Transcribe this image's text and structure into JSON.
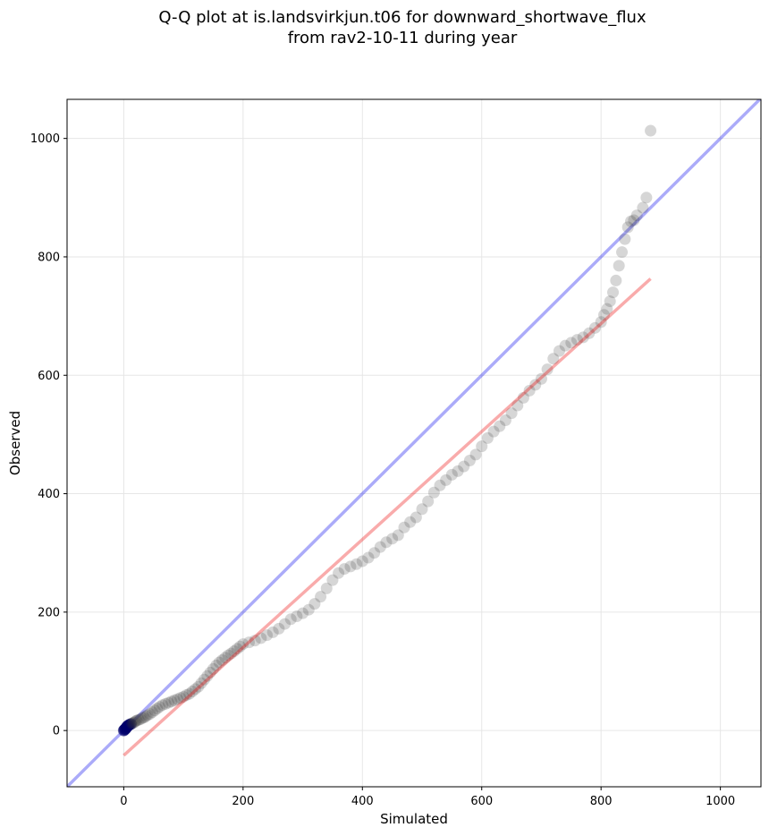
{
  "chart_data": {
    "type": "scatter",
    "title": "Q-Q plot at is.landsvirkjun.t06 for downward_shortwave_flux",
    "subtitle": "from rav2-10-11 during year",
    "xlabel": "Simulated",
    "ylabel": "Observed",
    "xlim": [
      -95,
      1068
    ],
    "ylim": [
      -95,
      1066
    ],
    "xticks": [
      0,
      200,
      400,
      600,
      800,
      1000
    ],
    "yticks": [
      0,
      200,
      400,
      600,
      800,
      1000
    ],
    "grid": true,
    "reference_line": {
      "name": "1:1 line",
      "color": "#0000ee",
      "from": [
        -95,
        -95
      ],
      "to": [
        1068,
        1068
      ]
    },
    "fit_line": {
      "name": "linear fit",
      "color": "#ee0000",
      "from": [
        0,
        -42
      ],
      "to": [
        883,
        763
      ]
    },
    "colors": {
      "points": "#333333",
      "low_points": "#00006a"
    },
    "points": {
      "x": [
        0,
        1,
        2,
        3,
        4,
        5,
        6,
        7,
        8,
        10,
        12,
        14,
        16,
        18,
        20,
        22,
        25,
        28,
        31,
        34,
        37,
        40,
        44,
        48,
        52,
        56,
        60,
        65,
        70,
        75,
        80,
        85,
        90,
        95,
        100,
        105,
        110,
        115,
        120,
        125,
        130,
        135,
        140,
        145,
        150,
        155,
        160,
        165,
        170,
        175,
        180,
        185,
        190,
        195,
        200,
        210,
        220,
        230,
        240,
        250,
        260,
        270,
        280,
        290,
        300,
        310,
        320,
        330,
        340,
        350,
        360,
        370,
        380,
        390,
        400,
        410,
        420,
        430,
        440,
        450,
        460,
        470,
        480,
        490,
        500,
        510,
        520,
        530,
        540,
        550,
        560,
        570,
        580,
        590,
        600,
        610,
        620,
        630,
        640,
        650,
        660,
        670,
        680,
        690,
        700,
        710,
        720,
        730,
        740,
        750,
        760,
        770,
        780,
        790,
        800,
        805,
        810,
        815,
        820,
        825,
        830,
        835,
        840,
        845,
        850,
        855,
        860,
        870,
        876,
        883
      ],
      "y": [
        0,
        1,
        2,
        3,
        4,
        6,
        7,
        8,
        9,
        10,
        11,
        12,
        13,
        14,
        16,
        17,
        18,
        19,
        21,
        22,
        24,
        26,
        28,
        31,
        34,
        37,
        40,
        43,
        45,
        47,
        49,
        51,
        53,
        55,
        57,
        60,
        62,
        66,
        70,
        74,
        80,
        86,
        92,
        98,
        104,
        110,
        115,
        119,
        123,
        127,
        130,
        134,
        138,
        142,
        146,
        149,
        152,
        156,
        161,
        166,
        172,
        180,
        188,
        193,
        198,
        204,
        214,
        226,
        240,
        254,
        266,
        273,
        277,
        281,
        286,
        292,
        300,
        310,
        318,
        324,
        330,
        343,
        352,
        360,
        374,
        387,
        402,
        414,
        423,
        432,
        438,
        446,
        456,
        466,
        480,
        494,
        505,
        514,
        524,
        536,
        549,
        562,
        574,
        584,
        594,
        610,
        628,
        641,
        650,
        655,
        660,
        664,
        671,
        680,
        690,
        702,
        712,
        725,
        740,
        760,
        785,
        808,
        830,
        850,
        860,
        862,
        870,
        883,
        900,
        1013
      ]
    }
  }
}
